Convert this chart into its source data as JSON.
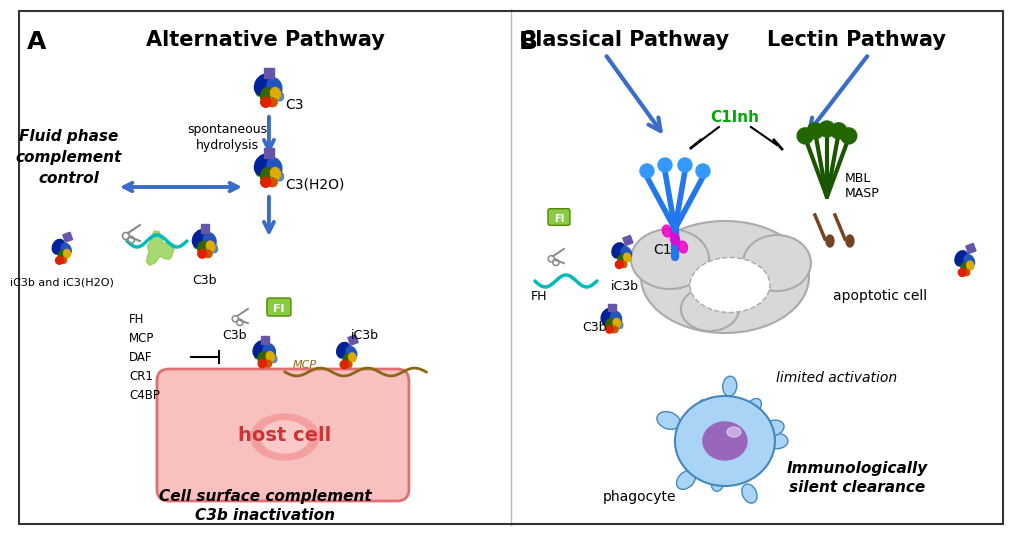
{
  "title_A": "Alternative Pathway",
  "title_B_left": "Classical Pathway",
  "title_B_right": "Lectin Pathway",
  "label_A": "A",
  "label_B": "B",
  "fluid_phase_text": "Fluid phase\ncomplement\ncontrol",
  "cell_surface_text": "Cell surface complement\nC3b inactivation",
  "spontaneous_text": "spontaneous\nhydrolysis",
  "C3_label": "C3",
  "C3H2O_label": "C3(H2O)",
  "C3b_label_1": "C3b",
  "C3b_label_2": "C3b",
  "iC3b_label_1": "iC3b and iC3(H2O)",
  "iC3b_label_2": "iC3b",
  "host_cell_label": "host cell",
  "FH_label_1": "FH\nMCP\nDAF\nCR1\nC4BP",
  "FH_label_2": "FH",
  "FI_label_1": "FI",
  "FI_label_2": "FI",
  "MCP_label": "MCP",
  "C1_label": "C1",
  "C1Inh_label": "C1Inh",
  "MBL_label": "MBL\nMASP",
  "iC3b_B_label": "iC3b",
  "apoptotic_label": "apoptotic cell",
  "limited_label": "limited activation",
  "phagocyte_label": "phagocyte",
  "immunologically_label": "Immunologically\nsilent clearance",
  "bg_color": "#ffffff",
  "arrow_color": "#3b6cc9",
  "text_color": "#000000",
  "C1Inh_color": "#00aa00",
  "host_cell_fill": "#f9c0c0",
  "host_cell_edge": "#e07070",
  "apoptotic_fill": "#d8d8d8",
  "apoptotic_edge": "#aaaaaa",
  "phagocyte_fill": "#aad4f5",
  "phagocyte_edge": "#4488bb",
  "nucleus_fill": "#9966bb",
  "teal_color": "#00bbbb",
  "complement_colors": {
    "square": "#6655aa",
    "red_circle": "#dd2200",
    "dark_blue": "#002299",
    "blue": "#2255bb",
    "green": "#336600",
    "yellow": "#ddaa00",
    "orange": "#cc5500",
    "olive": "#557700",
    "light_blue": "#5588bb",
    "magenta": "#cc00bb",
    "brown": "#774422"
  }
}
